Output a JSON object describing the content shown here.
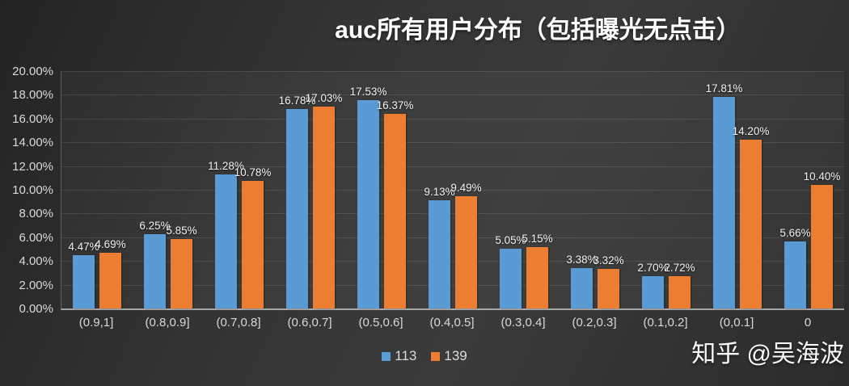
{
  "title": "auc所有用户分布（包括曝光无点击）",
  "watermark": "知乎 @吴海波",
  "colors": {
    "background": "#333333",
    "series_113": "#5B9BD5",
    "series_139": "#ED7D31",
    "text": "#d9d9d9"
  },
  "legend": {
    "items": [
      {
        "label": "113",
        "color": "#5B9BD5"
      },
      {
        "label": "139",
        "color": "#ED7D31"
      }
    ]
  },
  "chart_data": {
    "type": "bar",
    "title": "auc所有用户分布（包括曝光无点击）",
    "xlabel": "",
    "ylabel": "",
    "ylim": [
      0,
      20
    ],
    "grid": true,
    "legend_position": "bottom",
    "value_label_suffix": "%",
    "categories": [
      "(0.9,1]",
      "(0.8,0.9]",
      "(0.7,0.8]",
      "(0.6,0.7]",
      "(0.5,0.6]",
      "(0.4,0.5]",
      "(0.3,0.4]",
      "(0.2,0.3]",
      "(0.1,0.2]",
      "(0,0.1]",
      "0"
    ],
    "series": [
      {
        "name": "113",
        "color": "#5B9BD5",
        "values": [
          4.47,
          6.25,
          11.28,
          16.78,
          17.53,
          9.13,
          5.05,
          3.38,
          2.7,
          17.81,
          5.66
        ]
      },
      {
        "name": "139",
        "color": "#ED7D31",
        "values": [
          4.69,
          5.85,
          10.78,
          17.03,
          16.37,
          9.49,
          5.15,
          3.32,
          2.72,
          14.2,
          10.4
        ]
      }
    ],
    "y_ticks": [
      {
        "value": 0,
        "label": "0.00%"
      },
      {
        "value": 2,
        "label": "2.00%"
      },
      {
        "value": 4,
        "label": "4.00%"
      },
      {
        "value": 6,
        "label": "6.00%"
      },
      {
        "value": 8,
        "label": "8.00%"
      },
      {
        "value": 10,
        "label": "10.00%"
      },
      {
        "value": 12,
        "label": "12.00%"
      },
      {
        "value": 14,
        "label": "14.00%"
      },
      {
        "value": 16,
        "label": "16.00%"
      },
      {
        "value": 18,
        "label": "18.00%"
      },
      {
        "value": 20,
        "label": "20.00%"
      }
    ]
  }
}
